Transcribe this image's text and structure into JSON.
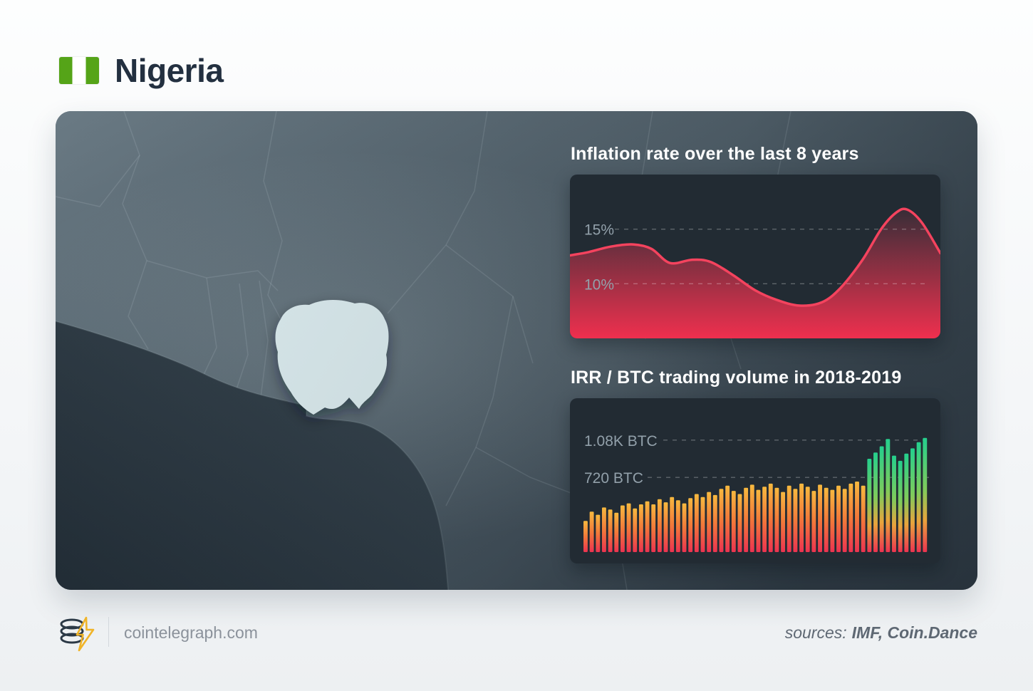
{
  "page": {
    "title": "Nigeria"
  },
  "flag": {
    "colors": [
      "#55a418",
      "#ffffff",
      "#55a418"
    ]
  },
  "colors": {
    "accent_red": "#f4435e",
    "accent_orange": "#f3ae3d",
    "accent_green": "#2bd084",
    "panel_dark": "#222b33",
    "nigeria_fill": "#dcecef"
  },
  "chart_data": [
    {
      "type": "area",
      "title": "Inflation rate over the last 8 years",
      "x": [
        0,
        0.05,
        0.11,
        0.17,
        0.22,
        0.27,
        0.33,
        0.38,
        0.44,
        0.5,
        0.56,
        0.62,
        0.68,
        0.73,
        0.79,
        0.84,
        0.88,
        0.91,
        0.95,
        1.0
      ],
      "values": [
        12.6,
        12.9,
        13.4,
        13.6,
        13.2,
        11.9,
        12.2,
        12.0,
        10.8,
        9.4,
        8.5,
        8.0,
        8.3,
        9.6,
        12.2,
        15.0,
        16.5,
        16.8,
        15.6,
        12.8
      ],
      "x_span_years": 8,
      "ylabel": "",
      "yticks": [
        {
          "value": 15,
          "label": "15%"
        },
        {
          "value": 10,
          "label": "10%"
        }
      ],
      "ylim": [
        5,
        20
      ],
      "grid": "dashed",
      "line_color": "#f4435e"
    },
    {
      "type": "bar",
      "title": "IRR / BTC trading volume in 2018-2019",
      "unit": "BTC",
      "values": [
        300,
        390,
        360,
        430,
        410,
        380,
        450,
        470,
        420,
        460,
        490,
        460,
        510,
        480,
        530,
        500,
        470,
        520,
        560,
        530,
        580,
        550,
        610,
        640,
        590,
        560,
        620,
        650,
        600,
        630,
        660,
        620,
        580,
        640,
        610,
        660,
        630,
        590,
        650,
        620,
        600,
        640,
        610,
        660,
        680,
        640,
        900,
        960,
        1020,
        1090,
        930,
        880,
        950,
        1000,
        1060,
        1100
      ],
      "yticks": [
        {
          "value": 1080,
          "label": "1.08K BTC"
        },
        {
          "value": 720,
          "label": "720 BTC"
        }
      ],
      "ylim": [
        0,
        1250
      ],
      "grid": "dashed",
      "green_from_index": 46
    }
  ],
  "footer": {
    "site": "cointelegraph.com",
    "sources_label": "sources:",
    "sources_value": "IMF, Coin.Dance"
  }
}
